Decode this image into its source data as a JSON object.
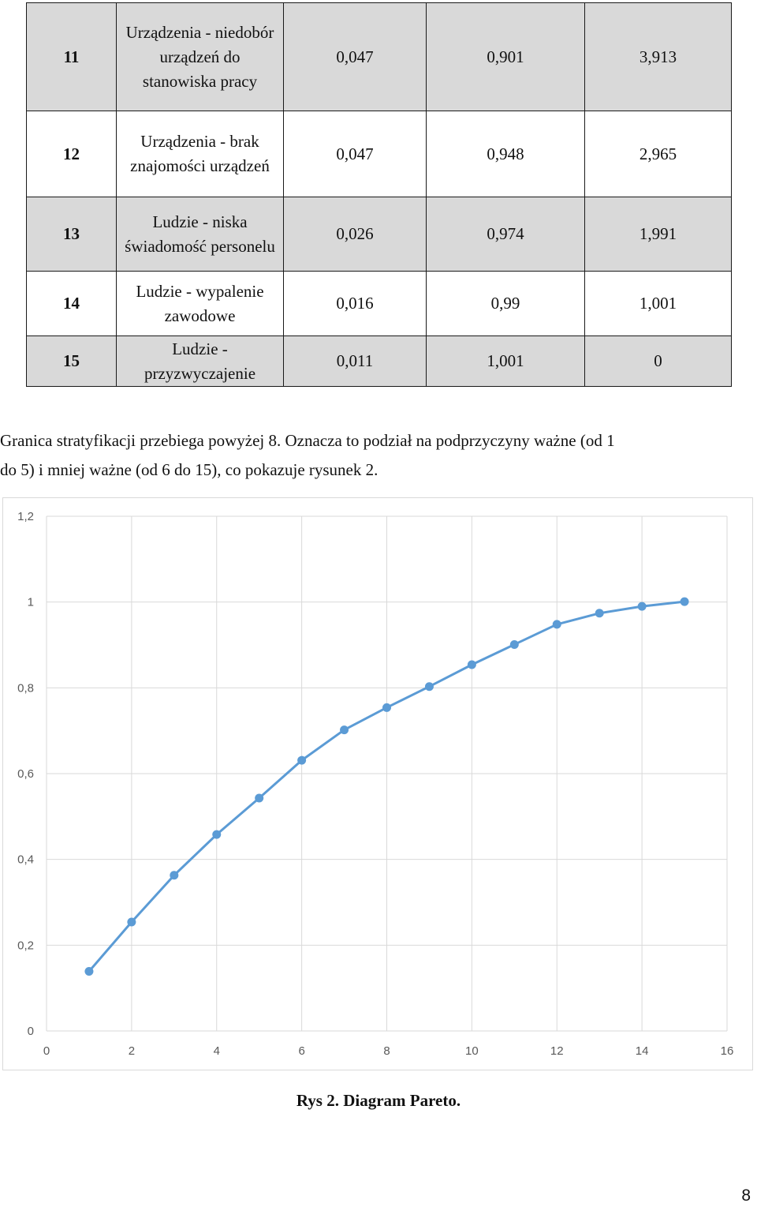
{
  "table": {
    "rows": [
      {
        "num": "11",
        "label": "Urządzenia - niedobór urządzeń do stanowiska pracy",
        "v1": "0,047",
        "v2": "0,901",
        "v3": "3,913",
        "shaded": true
      },
      {
        "num": "12",
        "label": "Urządzenia - brak znajomości urządzeń",
        "v1": "0,047",
        "v2": "0,948",
        "v3": "2,965",
        "shaded": false
      },
      {
        "num": "13",
        "label": "Ludzie - niska świadomość personelu",
        "v1": "0,026",
        "v2": "0,974",
        "v3": "1,991",
        "shaded": true
      },
      {
        "num": "14",
        "label": "Ludzie - wypalenie zawodowe",
        "v1": "0,016",
        "v2": "0,99",
        "v3": "1,001",
        "shaded": false
      },
      {
        "num": "15",
        "label": "Ludzie - przyzwyczajenie",
        "v1": "0,011",
        "v2": "1,001",
        "v3": "0",
        "shaded": true
      }
    ]
  },
  "paragraph": {
    "line1": "Granica stratyfikacji przebiega powyżej 8. Oznacza to podział na podprzyczyny ważne (od 1",
    "line2": "do 5) i mniej ważne (od 6 do 15), co pokazuje rysunek 2."
  },
  "chart_data": {
    "type": "line",
    "x": [
      1,
      2,
      3,
      4,
      5,
      6,
      7,
      8,
      9,
      10,
      11,
      12,
      13,
      14,
      15
    ],
    "series": [
      {
        "values": [
          0.139,
          0.254,
          0.363,
          0.458,
          0.543,
          0.631,
          0.702,
          0.754,
          0.803,
          0.854,
          0.901,
          0.948,
          0.974,
          0.99,
          1.001
        ]
      }
    ],
    "xlim": [
      0,
      16
    ],
    "ylim": [
      0,
      1.2
    ],
    "xticks": [
      "0",
      "2",
      "4",
      "6",
      "8",
      "10",
      "12",
      "14",
      "16"
    ],
    "yticks": [
      "0",
      "0,2",
      "0,4",
      "0,6",
      "0,8",
      "1",
      "1,2"
    ],
    "grid": true,
    "color": "#5b9bd5"
  },
  "caption": "Rys 2. Diagram Pareto.",
  "page_number": "8"
}
